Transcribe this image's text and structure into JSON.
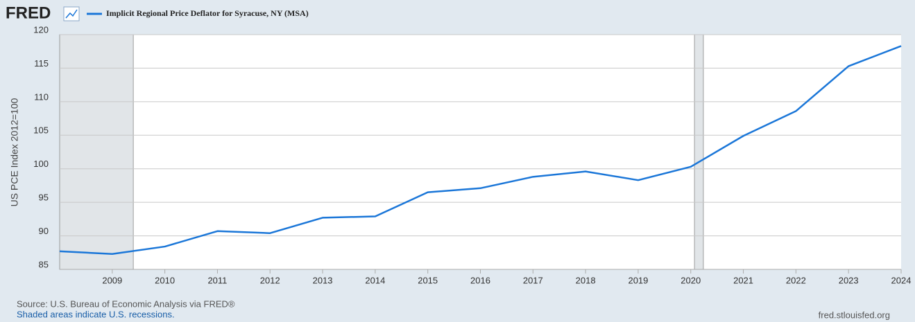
{
  "logo": "FRED",
  "chart_data": {
    "type": "line",
    "y_label": "US PCE Index 2012=100",
    "x": [
      2008,
      2009,
      2010,
      2011,
      2012,
      2013,
      2014,
      2015,
      2016,
      2017,
      2018,
      2019,
      2020,
      2021,
      2022,
      2023,
      2024
    ],
    "series": [
      {
        "name": "Implicit Regional Price Deflator for Syracuse, NY (MSA)",
        "color": "#1a76d8",
        "values": [
          87.7,
          87.3,
          88.4,
          90.7,
          90.4,
          92.7,
          92.9,
          96.5,
          97.1,
          98.8,
          99.6,
          98.3,
          100.3,
          104.9,
          108.6,
          115.3,
          118.3
        ]
      }
    ],
    "xlim": [
      2008,
      2024
    ],
    "xticks": [
      2009,
      2010,
      2011,
      2012,
      2013,
      2014,
      2015,
      2016,
      2017,
      2018,
      2019,
      2020,
      2021,
      2022,
      2023,
      2024
    ],
    "ylim": [
      85,
      120
    ],
    "yticks": [
      85,
      90,
      95,
      100,
      105,
      110,
      115,
      120
    ],
    "grid": true,
    "recessions": [
      [
        2008,
        2009.4
      ],
      [
        2020.07,
        2020.24
      ]
    ],
    "source": "Source: U.S. Bureau of Economic Analysis via FRED®",
    "recession_note": "Shaded areas indicate U.S. recessions.",
    "site": "fred.stlouisfed.org"
  }
}
